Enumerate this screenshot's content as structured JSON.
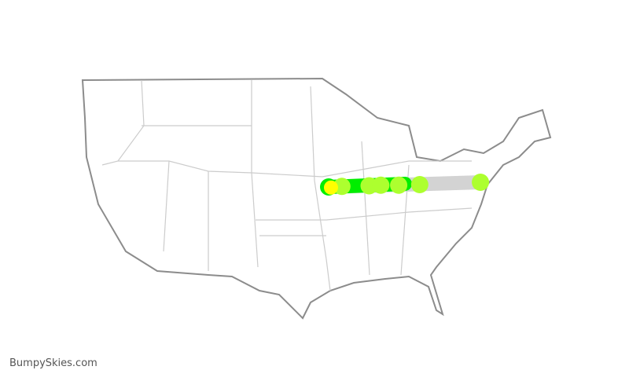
{
  "brand": "BumpySkies.com",
  "colors": {
    "land_stroke": "#8c8c8c",
    "state_stroke": "#cccccc",
    "route_gray": "#d3d3d3",
    "smooth_green": "#00ee00",
    "light_chop": "#adff2f",
    "moderate": "#ffff00"
  },
  "route": {
    "markers": [
      {
        "lon": -94.7,
        "lat": 39.1,
        "level": "smooth"
      },
      {
        "lon": -93.0,
        "lat": 39.2,
        "level": "light"
      },
      {
        "lon": -89.5,
        "lat": 39.3,
        "level": "light"
      },
      {
        "lon": -88.0,
        "lat": 39.4,
        "level": "light"
      },
      {
        "lon": -85.7,
        "lat": 39.4,
        "level": "light"
      },
      {
        "lon": -83.0,
        "lat": 39.5,
        "level": "light"
      },
      {
        "lon": -75.2,
        "lat": 39.9,
        "level": "light"
      },
      {
        "lon": -94.4,
        "lat": 39.0,
        "level": "moderate"
      }
    ]
  }
}
